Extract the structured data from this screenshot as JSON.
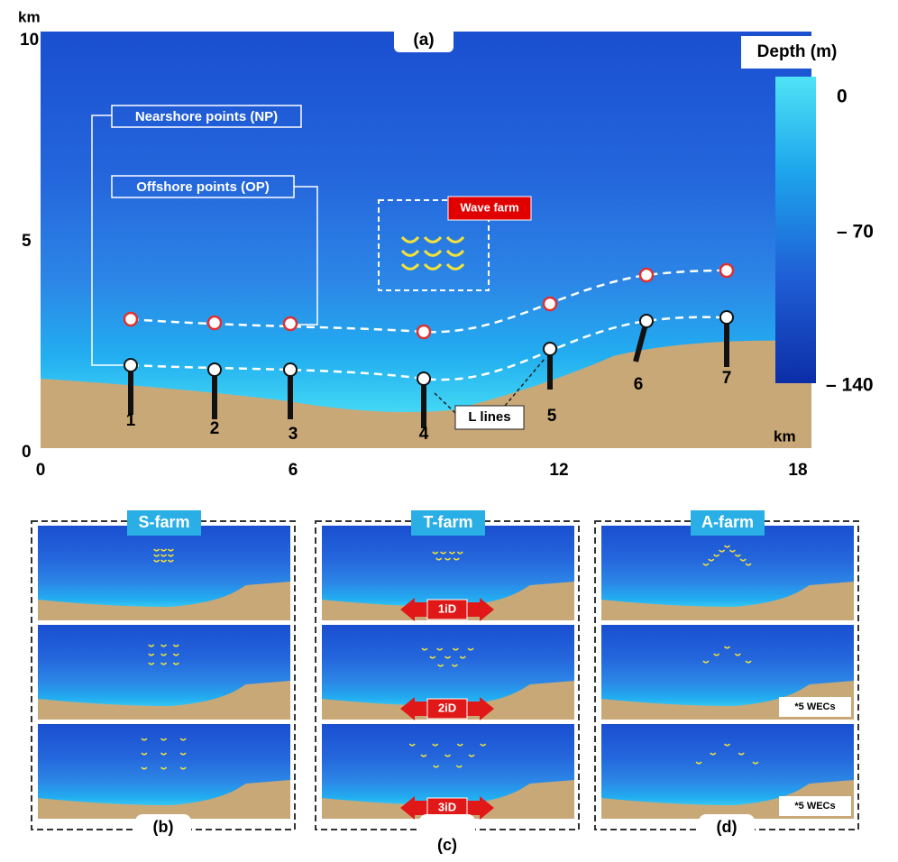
{
  "panel_a": {
    "label": "(a)",
    "y_axis": {
      "unit": "km",
      "ticks": [
        "10",
        "5",
        "0"
      ]
    },
    "x_axis": {
      "unit": "km",
      "ticks": [
        "0",
        "6",
        "12",
        "18"
      ]
    },
    "depth": {
      "title": "Depth (m)",
      "ticks": [
        "0",
        "– 70",
        "– 140"
      ]
    },
    "nearshore_label": "Nearshore points (NP)",
    "offshore_label": "Offshore points (OP)",
    "wave_farm_label": "Wave farm",
    "l_lines_label": "L lines",
    "line_labels": [
      "1",
      "2",
      "3",
      "4",
      "5",
      "6",
      "7"
    ]
  },
  "panels": [
    {
      "title": "S-farm",
      "label": "(b)"
    },
    {
      "title": "T-farm",
      "label": "(c)",
      "spacings": [
        "1iD",
        "2iD",
        "3iD"
      ]
    },
    {
      "title": "A-farm",
      "label": "(d)",
      "notes": [
        "*5 WECs",
        "*5 WECs"
      ]
    }
  ]
}
